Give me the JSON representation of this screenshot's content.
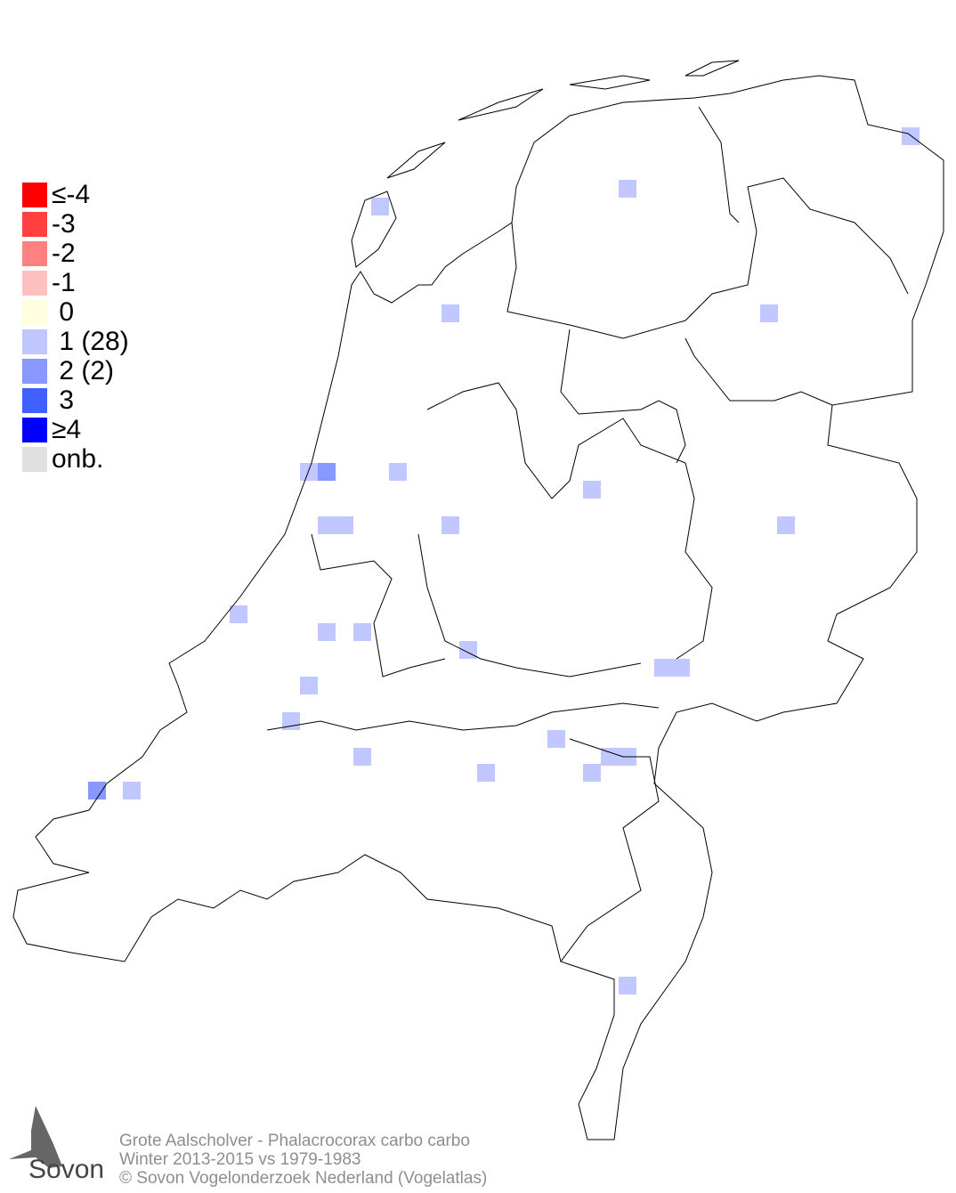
{
  "legend": [
    {
      "label": "≤-4",
      "color": "#ff0000"
    },
    {
      "label": "-3",
      "color": "#ff4040"
    },
    {
      "label": "-2",
      "color": "#ff8080"
    },
    {
      "label": "-1",
      "color": "#ffc0c0"
    },
    {
      "label": " 0",
      "color": "#ffffe0"
    },
    {
      "label": " 1 (28)",
      "color": "#c0c8ff"
    },
    {
      "label": " 2 (2)",
      "color": "#8898ff"
    },
    {
      "label": " 3",
      "color": "#4060ff"
    },
    {
      "label": "≥4",
      "color": "#0000ff"
    },
    {
      "label": "onb.",
      "color": "#e0e0e0"
    }
  ],
  "footer": {
    "line1": "Grote Aalscholver - Phalacrocorax carbo carbo",
    "line2": "Winter 2013-2015 vs 1979-1983",
    "line3": "© Sovon Vogelonderzoek Nederland (Vogelatlas)"
  },
  "logo": {
    "text": "Sovon"
  },
  "grid_cells": [
    {
      "v": 1,
      "c": [
        417,
        222
      ]
    },
    {
      "v": 1,
      "c": [
        695,
        202
      ]
    },
    {
      "v": 1,
      "c": [
        1013,
        143
      ]
    },
    {
      "v": 1,
      "c": [
        496,
        342
      ]
    },
    {
      "v": 1,
      "c": [
        854,
        342
      ]
    },
    {
      "v": 1,
      "c": [
        437,
        520
      ]
    },
    {
      "v": 1,
      "c": [
        337,
        520
      ]
    },
    {
      "v": 2,
      "c": [
        357,
        520
      ]
    },
    {
      "v": 1,
      "c": [
        655,
        540
      ]
    },
    {
      "v": 1,
      "c": [
        496,
        580
      ]
    },
    {
      "v": 1,
      "c": [
        873,
        580
      ]
    },
    {
      "v": 1,
      "c": [
        357,
        580
      ]
    },
    {
      "v": 1,
      "c": [
        377,
        580
      ]
    },
    {
      "v": 1,
      "c": [
        258,
        680
      ]
    },
    {
      "v": 1,
      "c": [
        357,
        700
      ]
    },
    {
      "v": 1,
      "c": [
        397,
        700
      ]
    },
    {
      "v": 1,
      "c": [
        516,
        720
      ]
    },
    {
      "v": 1,
      "c": [
        735,
        740
      ]
    },
    {
      "v": 1,
      "c": [
        755,
        740
      ]
    },
    {
      "v": 1,
      "c": [
        337,
        760
      ]
    },
    {
      "v": 1,
      "c": [
        317,
        800
      ]
    },
    {
      "v": 1,
      "c": [
        615,
        820
      ]
    },
    {
      "v": 1,
      "c": [
        675,
        840
      ]
    },
    {
      "v": 1,
      "c": [
        695,
        840
      ]
    },
    {
      "v": 1,
      "c": [
        536,
        858
      ]
    },
    {
      "v": 1,
      "c": [
        655,
        858
      ]
    },
    {
      "v": 1,
      "c": [
        138,
        878
      ]
    },
    {
      "v": 2,
      "c": [
        99,
        878
      ]
    },
    {
      "v": 1,
      "c": [
        695,
        1097
      ]
    },
    {
      "v": 1,
      "c": [
        397,
        840
      ]
    }
  ]
}
